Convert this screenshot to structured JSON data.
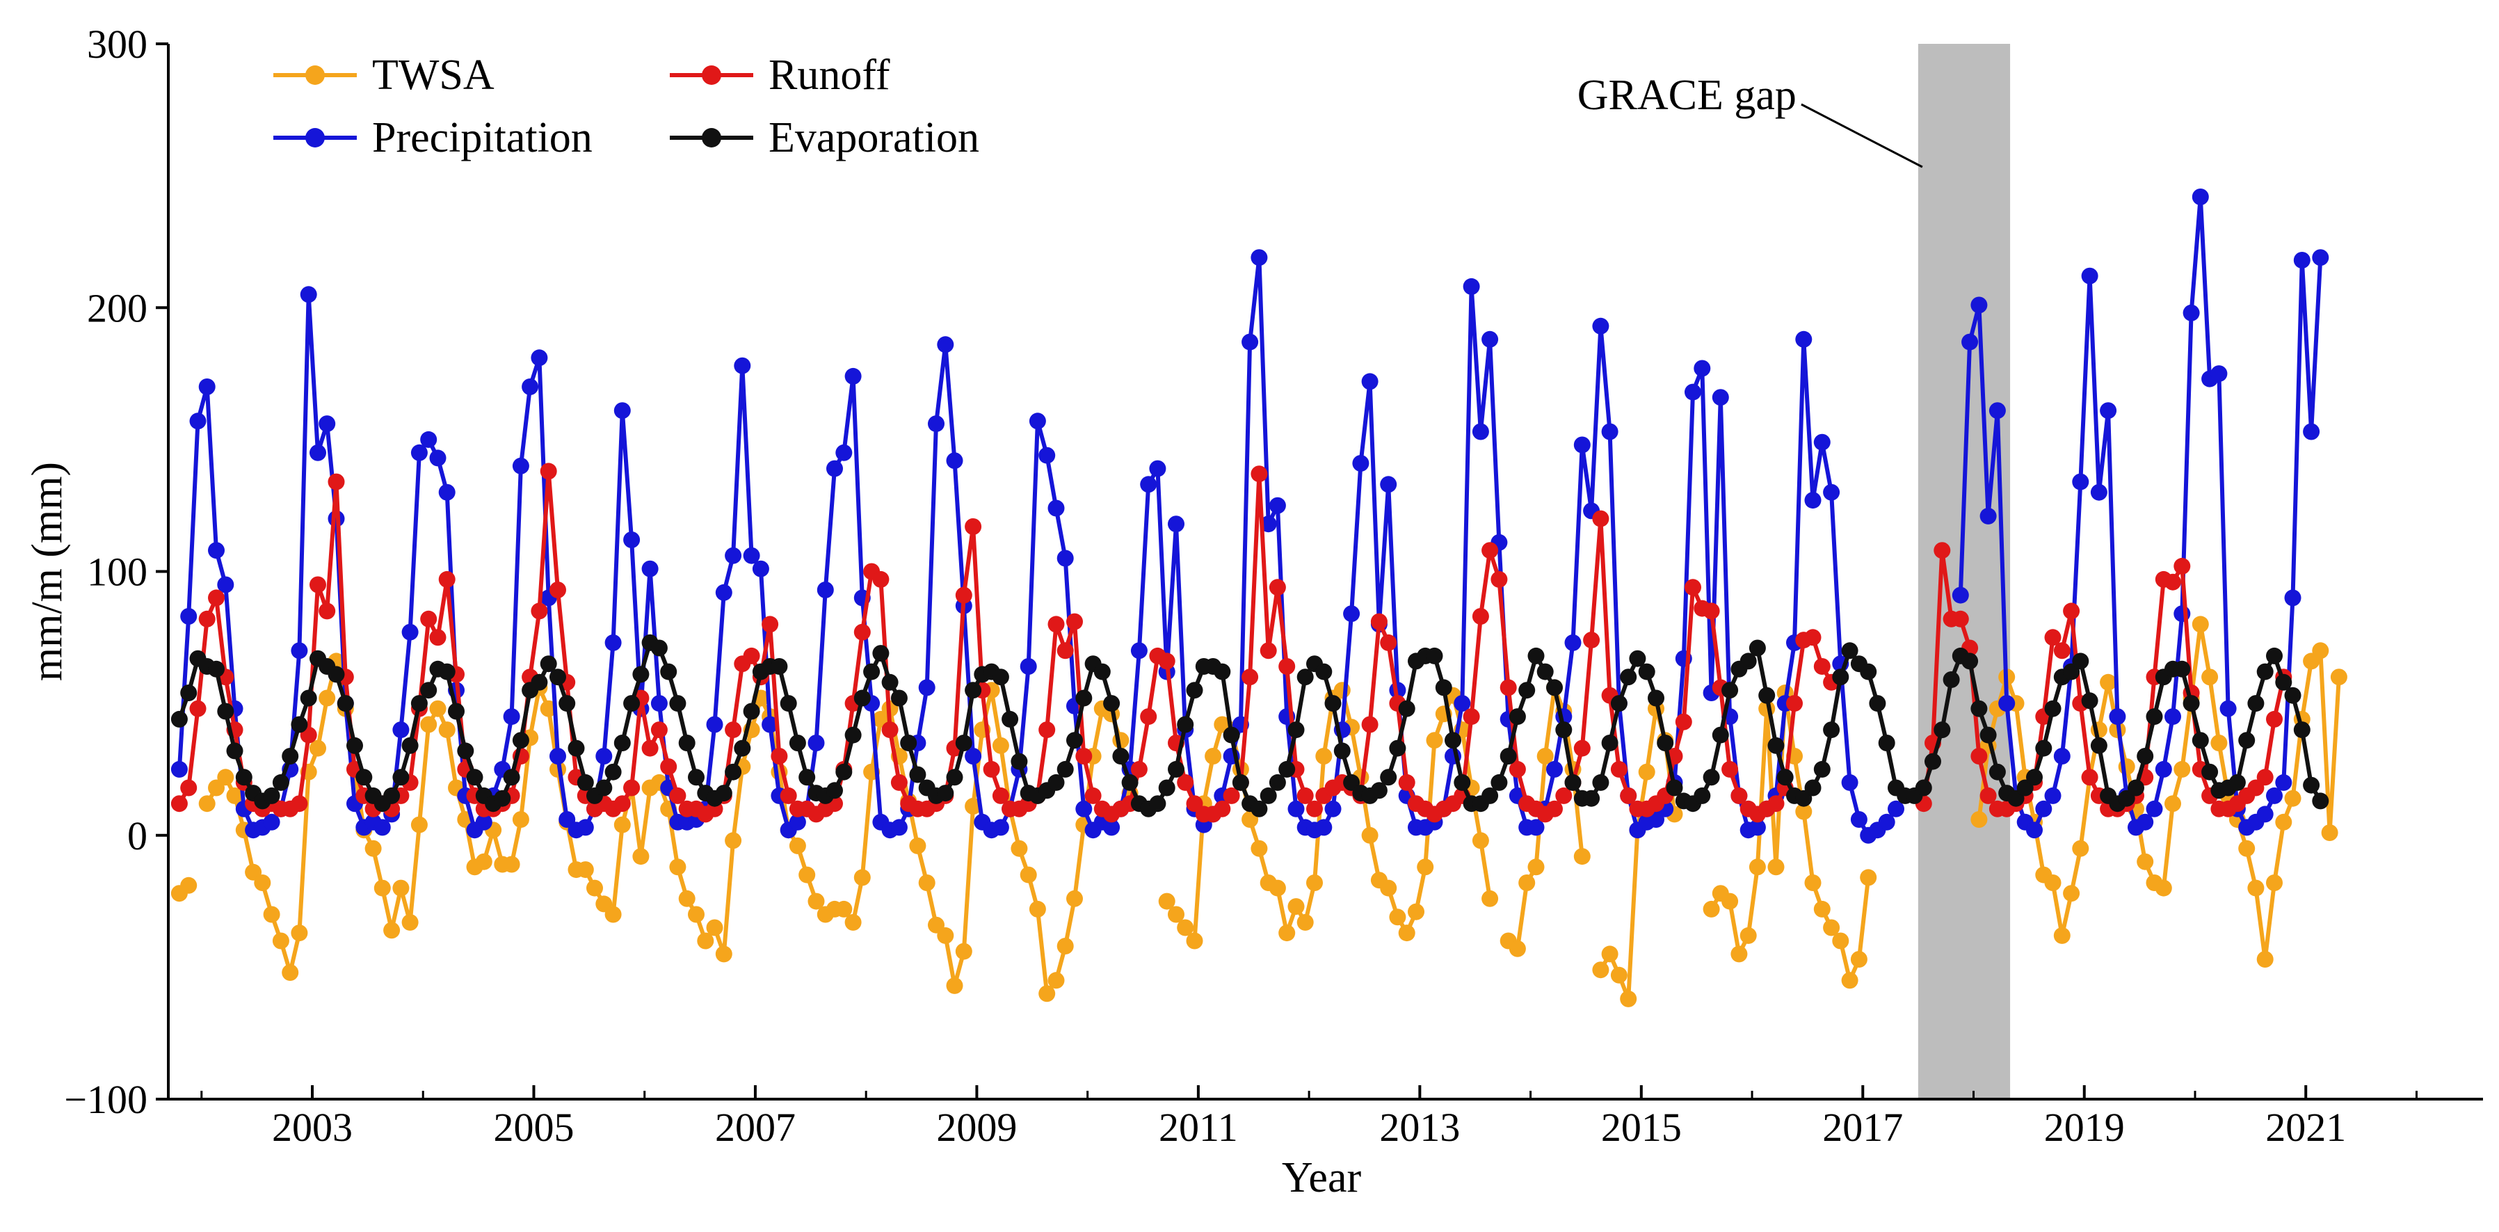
{
  "chart_data": {
    "type": "line",
    "title": "",
    "xlabel": "Year",
    "ylabel": "mm/m (mm)",
    "xlim": [
      2001.7,
      2022.6
    ],
    "ylim": [
      -100,
      300
    ],
    "xticks": [
      2003,
      2005,
      2007,
      2009,
      2011,
      2013,
      2015,
      2017,
      2019,
      2021
    ],
    "yticks": [
      -100,
      0,
      100,
      200,
      300
    ],
    "xtick_labels": [
      "2003",
      "2005",
      "2007",
      "2009",
      "2011",
      "2013",
      "2015",
      "2017",
      "2019",
      "2021"
    ],
    "ytick_labels": [
      "−100",
      "0",
      "100",
      "200",
      "300"
    ],
    "legend_position": "top-left",
    "grid": false,
    "gap": {
      "label": "GRACE gap",
      "start": 2017.5,
      "end": 2018.33
    },
    "start_time": 2001.8,
    "step": 0.08333,
    "series": [
      {
        "name": "TWSA",
        "color": "#F5A51C",
        "values": [
          -22,
          -19,
          null,
          12,
          18,
          22,
          15,
          2,
          -14,
          -18,
          -30,
          -40,
          -52,
          -37,
          24,
          33,
          52,
          66,
          48,
          25,
          2,
          -5,
          -20,
          -36,
          -20,
          -33,
          4,
          42,
          48,
          40,
          18,
          6,
          -12,
          -10,
          2,
          -11,
          -11,
          6,
          37,
          56,
          48,
          25,
          5,
          -13,
          -13,
          -20,
          -26,
          -30,
          4,
          18,
          -8,
          18,
          20,
          10,
          -12,
          -24,
          -30,
          -40,
          -35,
          -45,
          -2,
          26,
          40,
          52,
          45,
          24,
          2,
          -4,
          -15,
          -25,
          -30,
          -28,
          -28,
          -33,
          -16,
          24,
          44,
          48,
          30,
          13,
          -4,
          -18,
          -34,
          -38,
          -57,
          -44,
          11,
          40,
          55,
          34,
          10,
          -5,
          -15,
          -28,
          -60,
          -55,
          -42,
          -24,
          4,
          30,
          48,
          46,
          36,
          16,
          null,
          null,
          null,
          -25,
          -30,
          -35,
          -40,
          12,
          30,
          42,
          40,
          25,
          6,
          -5,
          -18,
          -20,
          -37,
          -27,
          -33,
          -18,
          30,
          52,
          55,
          41,
          22,
          0,
          -17,
          -20,
          -31,
          -37,
          -29,
          -12,
          36,
          46,
          53,
          40,
          18,
          -2,
          -24,
          null,
          -40,
          -43,
          -18,
          -12,
          30,
          56,
          47,
          25,
          -8,
          null,
          -51,
          -45,
          -53,
          -62,
          2,
          24,
          48,
          36,
          8,
          null,
          null,
          null,
          -28,
          -22,
          -25,
          -45,
          -38,
          -12,
          48,
          -12,
          54,
          30,
          9,
          -18,
          -28,
          -35,
          -40,
          -55,
          -47,
          -16,
          null,
          null,
          null,
          null,
          null,
          null,
          null,
          null,
          null,
          null,
          null,
          6,
          34,
          48,
          60,
          50,
          22,
          5,
          -15,
          -18,
          -38,
          -22,
          -5,
          22,
          40,
          58,
          40,
          26,
          10,
          -10,
          -18,
          -20,
          12,
          25,
          52,
          80,
          60,
          35,
          15,
          6,
          -5,
          -20,
          -47,
          -18,
          5,
          14,
          44,
          66,
          70,
          1,
          60
        ]
      },
      {
        "name": "Precipitation",
        "color": "#1515D8",
        "values": [
          25,
          83,
          157,
          170,
          108,
          95,
          48,
          10,
          2,
          3,
          5,
          10,
          25,
          70,
          205,
          145,
          156,
          120,
          50,
          12,
          3,
          5,
          3,
          8,
          40,
          77,
          145,
          150,
          143,
          130,
          55,
          15,
          2,
          5,
          15,
          25,
          45,
          140,
          170,
          181,
          90,
          30,
          6,
          2,
          3,
          10,
          30,
          73,
          161,
          112,
          48,
          101,
          50,
          18,
          5,
          5,
          6,
          10,
          42,
          92,
          106,
          178,
          106,
          101,
          42,
          15,
          2,
          5,
          10,
          35,
          93,
          139,
          145,
          174,
          90,
          50,
          5,
          2,
          3,
          10,
          35,
          56,
          156,
          186,
          142,
          87,
          30,
          5,
          2,
          3,
          10,
          25,
          64,
          157,
          144,
          124,
          105,
          49,
          10,
          2,
          5,
          3,
          10,
          25,
          70,
          133,
          139,
          62,
          118,
          40,
          10,
          4,
          8,
          15,
          30,
          42,
          187,
          219,
          118,
          125,
          45,
          10,
          3,
          2,
          3,
          10,
          40,
          84,
          141,
          172,
          80,
          133,
          55,
          15,
          3,
          3,
          5,
          10,
          30,
          50,
          208,
          153,
          188,
          111,
          44,
          15,
          3,
          3,
          10,
          25,
          45,
          73,
          148,
          123,
          193,
          153,
          50,
          15,
          2,
          5,
          6,
          10,
          20,
          67,
          168,
          177,
          54,
          166,
          45,
          15,
          2,
          3,
          10,
          15,
          50,
          73,
          188,
          127,
          149,
          130,
          65,
          20,
          6,
          0,
          2,
          5,
          10,
          null,
          null,
          null,
          null,
          null,
          null,
          91,
          187,
          201,
          121,
          161,
          50,
          15,
          5,
          2,
          10,
          15,
          30,
          64,
          134,
          212,
          130,
          161,
          45,
          15,
          3,
          5,
          10,
          25,
          45,
          84,
          198,
          242,
          173,
          175,
          48,
          10,
          3,
          5,
          8,
          15,
          20,
          90,
          218,
          153,
          219
        ]
      },
      {
        "name": "Runoff",
        "color": "#E01818",
        "values": [
          12,
          18,
          48,
          82,
          90,
          60,
          40,
          20,
          12,
          10,
          12,
          10,
          10,
          12,
          38,
          95,
          85,
          134,
          60,
          25,
          15,
          10,
          12,
          10,
          15,
          20,
          48,
          82,
          75,
          97,
          61,
          25,
          15,
          10,
          10,
          12,
          15,
          30,
          60,
          85,
          138,
          93,
          58,
          22,
          15,
          10,
          12,
          10,
          12,
          18,
          52,
          33,
          40,
          26,
          15,
          10,
          10,
          8,
          10,
          15,
          40,
          65,
          68,
          60,
          80,
          30,
          15,
          10,
          10,
          8,
          10,
          12,
          25,
          50,
          77,
          100,
          97,
          40,
          20,
          12,
          10,
          10,
          12,
          15,
          33,
          91,
          117,
          55,
          25,
          15,
          10,
          10,
          12,
          15,
          40,
          80,
          70,
          81,
          30,
          15,
          10,
          8,
          10,
          12,
          25,
          45,
          68,
          66,
          35,
          20,
          12,
          8,
          8,
          10,
          15,
          20,
          60,
          137,
          70,
          94,
          64,
          25,
          15,
          10,
          15,
          18,
          20,
          18,
          15,
          42,
          81,
          73,
          50,
          20,
          12,
          10,
          8,
          10,
          12,
          15,
          45,
          83,
          108,
          97,
          56,
          25,
          12,
          10,
          8,
          10,
          15,
          20,
          33,
          74,
          120,
          53,
          25,
          15,
          10,
          10,
          12,
          15,
          30,
          43,
          94,
          86,
          85,
          56,
          25,
          15,
          10,
          8,
          10,
          12,
          18,
          50,
          74,
          75,
          64,
          58,
          null,
          null,
          null,
          null,
          null,
          null,
          null,
          null,
          null,
          12,
          35,
          108,
          82,
          82,
          71,
          30,
          15,
          10,
          10,
          12,
          15,
          20,
          45,
          75,
          70,
          85,
          50,
          22,
          15,
          10,
          10,
          12,
          15,
          22,
          60,
          97,
          96,
          102,
          54,
          25,
          15,
          10,
          10,
          12,
          15,
          18,
          22,
          44,
          60
        ]
      },
      {
        "name": "Evaporation",
        "color": "#111111",
        "values": [
          44,
          54,
          67,
          64,
          63,
          47,
          32,
          22,
          16,
          13,
          15,
          20,
          30,
          42,
          52,
          67,
          64,
          61,
          50,
          34,
          22,
          15,
          12,
          15,
          22,
          34,
          50,
          55,
          63,
          62,
          47,
          32,
          22,
          15,
          12,
          14,
          22,
          36,
          55,
          58,
          65,
          60,
          50,
          33,
          20,
          15,
          18,
          24,
          35,
          50,
          61,
          73,
          71,
          62,
          50,
          35,
          22,
          16,
          14,
          16,
          24,
          33,
          47,
          62,
          64,
          64,
          50,
          35,
          22,
          16,
          15,
          17,
          24,
          38,
          52,
          62,
          69,
          58,
          52,
          35,
          23,
          18,
          15,
          16,
          22,
          35,
          55,
          61,
          62,
          60,
          44,
          28,
          16,
          15,
          17,
          20,
          25,
          36,
          52,
          65,
          62,
          50,
          30,
          20,
          12,
          10,
          12,
          18,
          25,
          42,
          55,
          64,
          64,
          62,
          38,
          20,
          12,
          10,
          15,
          20,
          25,
          40,
          60,
          65,
          62,
          50,
          32,
          20,
          16,
          15,
          17,
          22,
          33,
          48,
          66,
          68,
          68,
          56,
          36,
          20,
          12,
          12,
          15,
          20,
          30,
          45,
          55,
          68,
          62,
          56,
          40,
          20,
          14,
          14,
          20,
          35,
          50,
          60,
          67,
          62,
          52,
          35,
          18,
          13,
          12,
          15,
          22,
          38,
          55,
          63,
          66,
          71,
          53,
          34,
          22,
          15,
          14,
          18,
          25,
          40,
          60,
          70,
          65,
          62,
          50,
          35,
          18,
          15,
          15,
          18,
          28,
          40,
          59,
          68,
          66,
          48,
          38,
          24,
          16,
          14,
          18,
          22,
          33,
          48,
          60,
          62,
          66,
          51,
          34,
          15,
          12,
          14,
          18,
          30,
          45,
          60,
          63,
          63,
          50,
          36,
          24,
          17,
          18,
          20,
          36,
          50,
          62,
          68,
          58,
          53,
          40,
          19,
          13
        ]
      }
    ]
  }
}
